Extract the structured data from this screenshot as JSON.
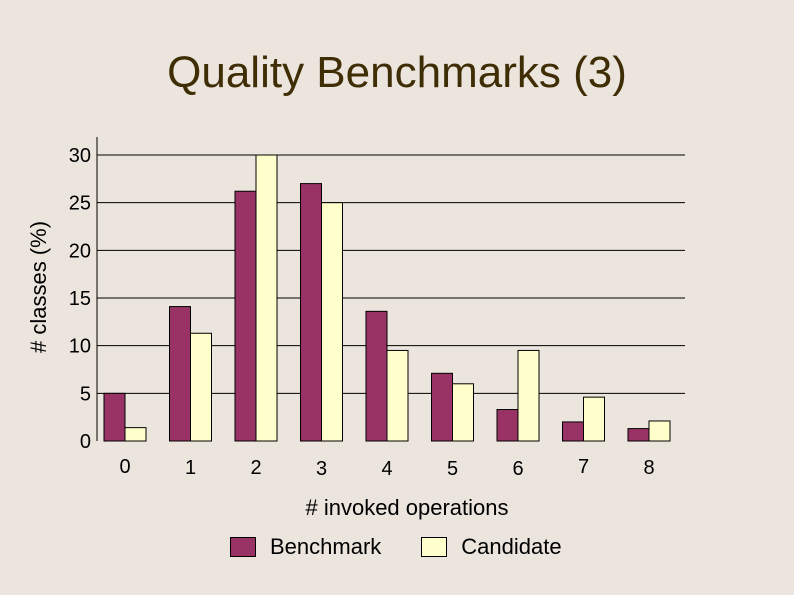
{
  "title": "Quality Benchmarks (3)",
  "chart_data": {
    "type": "bar",
    "title": "Quality Benchmarks (3)",
    "xlabel": "# invoked operations",
    "ylabel": "# classes (%)",
    "categories": [
      "0",
      "1",
      "2",
      "3",
      "4",
      "5",
      "6",
      "7",
      "8"
    ],
    "ylim": [
      0,
      30
    ],
    "yticks": [
      "0",
      "5",
      "10",
      "15",
      "20",
      "25",
      "30"
    ],
    "grid": true,
    "legend_position": "bottom",
    "series": [
      {
        "name": "Benchmark",
        "color": "#993366",
        "values": [
          5,
          14.1,
          26.2,
          27,
          13.6,
          7.1,
          3.3,
          2,
          1.3
        ]
      },
      {
        "name": "Candidate",
        "color": "#ffffcc",
        "values": [
          1.4,
          11.3,
          30,
          25,
          9.5,
          6,
          9.5,
          4.6,
          2.1
        ]
      }
    ]
  }
}
